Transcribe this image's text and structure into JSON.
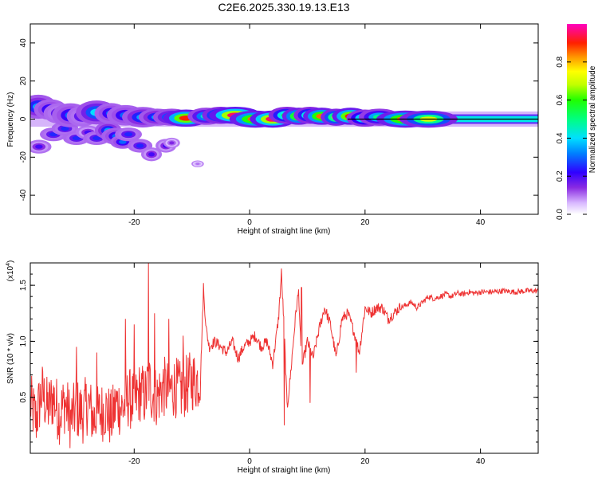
{
  "title": "C2E6.2025.330.19.13.E13",
  "chart_data": [
    {
      "type": "heatmap",
      "title": "C2E6.2025.330.19.13.E13",
      "xlabel": "Height of straight line (km)",
      "ylabel": "Frequency (Hz)",
      "xlim": [
        -38,
        50
      ],
      "ylim": [
        -50,
        50
      ],
      "xticks": [
        -20,
        0,
        20,
        40
      ],
      "xtick_labels": [
        "-20",
        "0",
        "20",
        "40"
      ],
      "yticks": [
        -40,
        -20,
        0,
        20,
        40
      ],
      "ytick_labels": [
        "-40",
        "-20",
        "0",
        "20",
        "40"
      ],
      "colorbar": {
        "label": "Normalized spectral amplitude",
        "range": [
          0,
          1
        ],
        "ticks": [
          0.0,
          0.2,
          0.4,
          0.6,
          0.8
        ],
        "tick_labels": [
          "0.0",
          "0.2",
          "0.4",
          "0.6",
          "0.8"
        ]
      },
      "ridge_line": {
        "y": 0,
        "x_start": 17,
        "x_end": 50
      },
      "blobs": [
        {
          "x": -36.6,
          "y": 6.5,
          "w": 1.8,
          "h": 3.5,
          "v": 0.35
        },
        {
          "x": -34.5,
          "y": 5.0,
          "w": 1.6,
          "h": 3.0,
          "v": 0.3
        },
        {
          "x": -33.0,
          "y": 3.0,
          "w": 1.5,
          "h": 3.0,
          "v": 0.25
        },
        {
          "x": -31.0,
          "y": 2.0,
          "w": 1.8,
          "h": 3.5,
          "v": 0.3
        },
        {
          "x": -29.0,
          "y": 1.5,
          "w": 1.5,
          "h": 3.0,
          "v": 0.25
        },
        {
          "x": -26.5,
          "y": 3.5,
          "w": 2.0,
          "h": 3.5,
          "v": 0.4
        },
        {
          "x": -24.0,
          "y": 3.0,
          "w": 1.6,
          "h": 3.0,
          "v": 0.3
        },
        {
          "x": -21.5,
          "y": 2.0,
          "w": 1.8,
          "h": 3.0,
          "v": 0.3
        },
        {
          "x": -18.5,
          "y": 1.0,
          "w": 2.0,
          "h": 3.0,
          "v": 0.35
        },
        {
          "x": -16.0,
          "y": 1.0,
          "w": 1.8,
          "h": 2.5,
          "v": 0.35
        },
        {
          "x": -13.5,
          "y": 1.0,
          "w": 1.8,
          "h": 2.5,
          "v": 0.4
        },
        {
          "x": -11.0,
          "y": 0.5,
          "w": 2.2,
          "h": 2.5,
          "v": 0.9
        },
        {
          "x": -7.5,
          "y": 1.5,
          "w": 1.8,
          "h": 2.5,
          "v": 0.45
        },
        {
          "x": -5.0,
          "y": 2.0,
          "w": 1.8,
          "h": 2.5,
          "v": 0.65
        },
        {
          "x": -2.5,
          "y": 2.0,
          "w": 2.5,
          "h": 2.5,
          "v": 0.95
        },
        {
          "x": 1.0,
          "y": 0.0,
          "w": 2.5,
          "h": 2.5,
          "v": 0.85
        },
        {
          "x": 4.0,
          "y": 0.0,
          "w": 2.2,
          "h": 2.5,
          "v": 0.95
        },
        {
          "x": 6.5,
          "y": 2.0,
          "w": 1.8,
          "h": 2.5,
          "v": 0.6
        },
        {
          "x": 8.5,
          "y": 1.5,
          "w": 1.6,
          "h": 2.5,
          "v": 0.8
        },
        {
          "x": 10.5,
          "y": 2.0,
          "w": 1.6,
          "h": 2.5,
          "v": 0.6
        },
        {
          "x": 12.5,
          "y": 1.5,
          "w": 1.8,
          "h": 2.5,
          "v": 0.85
        },
        {
          "x": 15.0,
          "y": 1.0,
          "w": 1.5,
          "h": 2.5,
          "v": 0.7
        },
        {
          "x": 17.5,
          "y": 1.5,
          "w": 1.8,
          "h": 2.5,
          "v": 0.9
        },
        {
          "x": 20.0,
          "y": 0.5,
          "w": 1.8,
          "h": 2.5,
          "v": 0.55
        },
        {
          "x": 22.5,
          "y": 1.0,
          "w": 2.0,
          "h": 2.5,
          "v": 0.5
        },
        {
          "x": 27.0,
          "y": 0.0,
          "w": 2.8,
          "h": 2.5,
          "v": 0.85
        },
        {
          "x": 31.0,
          "y": 0.0,
          "w": 2.8,
          "h": 2.5,
          "v": 0.7
        }
      ],
      "scatter_blobs": [
        {
          "x": -36.5,
          "y": -14.5,
          "w": 1.2,
          "h": 2.0,
          "v": 0.2
        },
        {
          "x": -34.0,
          "y": -8.0,
          "w": 1.3,
          "h": 2.0,
          "v": 0.25
        },
        {
          "x": -32.0,
          "y": -5.0,
          "w": 1.3,
          "h": 2.0,
          "v": 0.25
        },
        {
          "x": -30.0,
          "y": -10.0,
          "w": 1.3,
          "h": 2.0,
          "v": 0.25
        },
        {
          "x": -28.0,
          "y": -7.0,
          "w": 1.2,
          "h": 2.0,
          "v": 0.2
        },
        {
          "x": -26.5,
          "y": -10.0,
          "w": 1.3,
          "h": 2.0,
          "v": 0.25
        },
        {
          "x": -24.5,
          "y": -6.0,
          "w": 1.3,
          "h": 2.5,
          "v": 0.35
        },
        {
          "x": -23.0,
          "y": -9.0,
          "w": 1.5,
          "h": 2.5,
          "v": 0.3
        },
        {
          "x": -22.0,
          "y": -12.0,
          "w": 1.2,
          "h": 2.0,
          "v": 0.3
        },
        {
          "x": -21.0,
          "y": -8.0,
          "w": 1.3,
          "h": 2.0,
          "v": 0.25
        },
        {
          "x": -19.0,
          "y": -14.0,
          "w": 1.2,
          "h": 2.0,
          "v": 0.25
        },
        {
          "x": -17.0,
          "y": -18.5,
          "w": 1.0,
          "h": 2.0,
          "v": 0.2
        },
        {
          "x": -14.5,
          "y": -14.0,
          "w": 1.0,
          "h": 2.0,
          "v": 0.2
        },
        {
          "x": -13.5,
          "y": -12.5,
          "w": 0.8,
          "h": 1.5,
          "v": 0.15
        },
        {
          "x": -9.0,
          "y": -23.5,
          "w": 0.6,
          "h": 1.0,
          "v": 0.1
        }
      ]
    },
    {
      "type": "line",
      "xlabel": "Height of straight line (km)",
      "ylabel": "SNR (10 * v/v)",
      "y_multiplier_label": "(x10",
      "y_multiplier_exponent": "4",
      "xlim": [
        -38,
        50
      ],
      "ylim": [
        0,
        1.7
      ],
      "xticks": [
        -20,
        0,
        20,
        40
      ],
      "xtick_labels": [
        "-20",
        "0",
        "20",
        "40"
      ],
      "yticks": [
        0.5,
        1.0,
        1.5
      ],
      "ytick_labels": [
        "0.5",
        "1.0",
        "1.5"
      ],
      "color": "#ee3333",
      "x": [
        -38,
        -37,
        -36,
        -35,
        -34,
        -33,
        -32,
        -31,
        -30,
        -29,
        -28,
        -27,
        -26,
        -25,
        -24,
        -23,
        -22,
        -21,
        -20,
        -19,
        -18,
        -17.5,
        -17,
        -16,
        -15,
        -14,
        -13,
        -12,
        -11,
        -10,
        -9,
        -8.5,
        -8,
        -7.5,
        -7,
        -6,
        -5,
        -4,
        -3,
        -2,
        -1,
        0,
        1,
        2,
        3,
        4,
        5,
        5.5,
        6,
        6.5,
        7,
        8,
        8.5,
        9,
        10,
        11,
        12,
        13,
        14,
        15,
        16,
        17,
        18,
        19,
        20,
        21,
        22,
        23,
        24,
        25,
        26,
        27,
        28,
        29,
        30,
        31,
        32,
        33,
        34,
        35,
        36,
        37,
        38,
        39,
        40,
        42,
        44,
        46,
        48,
        50
      ],
      "y": [
        0.45,
        0.3,
        0.55,
        0.4,
        0.5,
        0.35,
        0.45,
        0.3,
        0.4,
        0.35,
        0.45,
        0.3,
        0.35,
        0.4,
        0.3,
        0.45,
        0.4,
        0.5,
        0.45,
        0.55,
        0.5,
        0.65,
        0.55,
        0.5,
        0.6,
        0.55,
        0.6,
        0.55,
        0.6,
        0.65,
        0.65,
        0.7,
        1.45,
        1.1,
        0.95,
        1.0,
        0.95,
        0.9,
        1.0,
        0.85,
        0.95,
        1.0,
        1.05,
        0.95,
        1.0,
        0.8,
        1.2,
        1.6,
        1.1,
        0.4,
        0.65,
        1.25,
        1.45,
        0.75,
        1.0,
        0.85,
        1.1,
        1.3,
        1.15,
        0.85,
        1.2,
        1.25,
        1.1,
        0.9,
        1.3,
        1.25,
        1.3,
        1.3,
        1.2,
        1.25,
        1.3,
        1.32,
        1.35,
        1.3,
        1.35,
        1.4,
        1.38,
        1.4,
        1.42,
        1.4,
        1.43,
        1.42,
        1.44,
        1.43,
        1.44,
        1.44,
        1.45,
        1.44,
        1.45,
        1.45
      ],
      "noise_regions": [
        {
          "x_start": -38,
          "x_end": -8.5,
          "amplitude": 0.28
        },
        {
          "x_start": -8.5,
          "x_end": 26,
          "amplitude": 0.05
        },
        {
          "x_start": 26,
          "x_end": 50,
          "amplitude": 0.025
        }
      ],
      "spikes": [
        {
          "x": -30.0,
          "y": 0.95
        },
        {
          "x": -26.5,
          "y": 0.9
        },
        {
          "x": -21.5,
          "y": 1.2
        },
        {
          "x": -20.0,
          "y": 1.15
        },
        {
          "x": -17.5,
          "y": 1.7
        },
        {
          "x": -16.5,
          "y": 1.25
        },
        {
          "x": -14.0,
          "y": 1.2
        },
        {
          "x": -11.5,
          "y": 1.05
        },
        {
          "x": -8.0,
          "y": 1.52
        },
        {
          "x": 5.5,
          "y": 1.65
        },
        {
          "x": 6.0,
          "y": 0.25
        },
        {
          "x": 9.0,
          "y": 1.48
        },
        {
          "x": 10.5,
          "y": 0.45
        },
        {
          "x": 18.5,
          "y": 0.72
        }
      ]
    }
  ]
}
